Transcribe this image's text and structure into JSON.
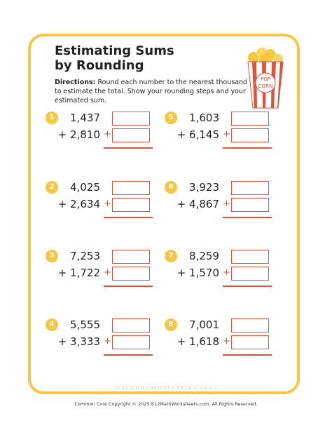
{
  "header": {
    "title": "Estimating Sums by Rounding",
    "directions_label": "Directions:",
    "directions": "Round each number to the nearest thousand to estimate the total. Show your rounding steps and your estimated sum."
  },
  "icon": {
    "label_top": "POP",
    "label_bottom": "CORN"
  },
  "sum_sign": "+",
  "problems": [
    {
      "number": "1",
      "first": "1,437",
      "second": "+ 2,810"
    },
    {
      "number": "2",
      "first": "4,025",
      "second": "+ 2,634"
    },
    {
      "number": "3",
      "first": "7,253",
      "second": "+ 1,722"
    },
    {
      "number": "4",
      "first": "5,555",
      "second": "+ 3,333"
    },
    {
      "number": "5",
      "first": "1,603",
      "second": "+ 6,145"
    },
    {
      "number": "6",
      "first": "3,923",
      "second": "+ 4,867"
    },
    {
      "number": "7",
      "first": "8,259",
      "second": "+ 1,570"
    },
    {
      "number": "8",
      "first": "7,001",
      "second": "+ 1,618"
    }
  ],
  "footer": {
    "standard": "CCSS.MATH.CONTENT.4.NBT.A.3, OA.A.3",
    "copyright": "Common Core Copyright © 2025 K12MathWorksheets.com. All Rights Reserved."
  }
}
